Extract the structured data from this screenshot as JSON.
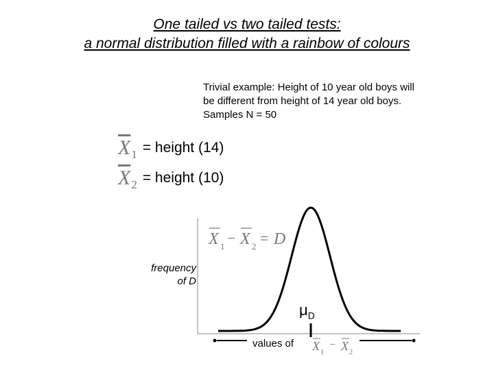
{
  "title": {
    "line1": "One tailed vs two tailed tests:",
    "line2": "a normal distribution filled with a rainbow of colours"
  },
  "example": {
    "line1": "Trivial example: Height of 10 year old boys will",
    "line2": "be different from height of 14 year old boys.",
    "line3": "Samples N = 50"
  },
  "definitions": [
    {
      "symbol": "X",
      "subscript": "1",
      "text": "= height (14)"
    },
    {
      "symbol": "X",
      "subscript": "2",
      "text": "= height (10)"
    }
  ],
  "graph": {
    "equation": {
      "x": "X",
      "sub1": "1",
      "minus": "−",
      "sub2": "2",
      "equals": "=",
      "rhs": "D"
    },
    "ylabel_line1": "frequency",
    "ylabel_line2": "of D",
    "mean_symbol": "μ",
    "mean_subscript": "D",
    "xlabel": "values of",
    "xlabel_expr": {
      "x": "X",
      "sub1": "1",
      "minus": "−",
      "sub2": "2"
    }
  }
}
